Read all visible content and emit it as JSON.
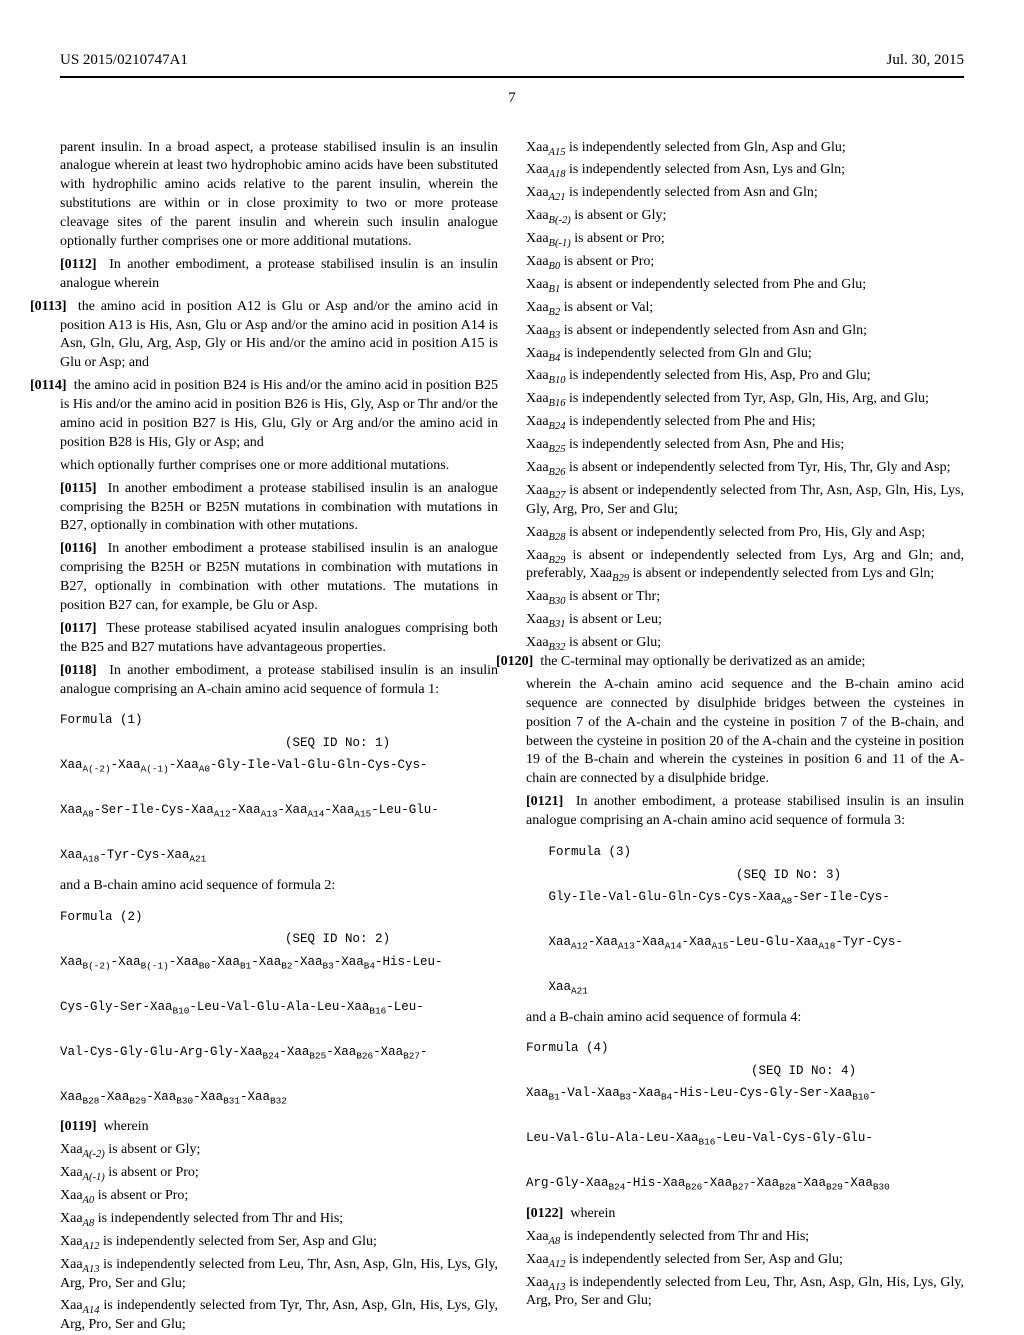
{
  "header": {
    "pub_number": "US 2015/0210747A1",
    "pub_date": "Jul. 30, 2015"
  },
  "page_number": "7",
  "left": {
    "intro": "parent insulin. In a broad aspect, a protease stabilised insulin is an insulin analogue wherein at least two hydrophobic amino acids have been substituted with hydrophilic amino acids relative to the parent insulin, wherein the substitutions are within or in close proximity to two or more protease cleavage sites of the parent insulin and wherein such insulin analogue optionally further comprises one or more additional mutations.",
    "p0112_num": "[0112]",
    "p0112": "In another embodiment, a protease stabilised insulin is an insulin analogue wherein",
    "p0113_num": "[0113]",
    "p0113": "the amino acid in position A12 is Glu or Asp and/or the amino acid in position A13 is His, Asn, Glu or Asp and/or the amino acid in position A14 is Asn, Gln, Glu, Arg, Asp, Gly or His and/or the amino acid in position A15 is Glu or Asp; and",
    "p0114_num": "[0114]",
    "p0114": "the amino acid in position B24 is His and/or the amino acid in position B25 is His and/or the amino acid in position B26 is His, Gly, Asp or Thr and/or the amino acid in position B27 is His, Glu, Gly or Arg and/or the amino acid in position B28 is His, Gly or Asp; and",
    "p0114_tail": "which optionally further comprises one or more additional mutations.",
    "p0115_num": "[0115]",
    "p0115": "In another embodiment a protease stabilised insulin is an analogue comprising the B25H or B25N mutations in combination with mutations in B27, optionally in combination with other mutations.",
    "p0116_num": "[0116]",
    "p0116": "In another embodiment a protease stabilised insulin is an analogue comprising the B25H or B25N mutations in combination with mutations in B27, optionally in combination with other mutations. The mutations in position B27 can, for example, be Glu or Asp.",
    "p0117_num": "[0117]",
    "p0117": "These protease stabilised acyated insulin analogues comprising both the B25 and B27 mutations have advantageous properties.",
    "p0118_num": "[0118]",
    "p0118": "In another embodiment, a protease stabilised insulin is an insulin analogue comprising an A-chain amino acid sequence of formula 1:",
    "formula1_label": "Formula (1)",
    "seq1_label": "(SEQ ID No: 1)",
    "bchain_intro": "and a B-chain amino acid sequence of formula 2:",
    "formula2_label": "Formula (2)",
    "seq2_label": "(SEQ ID No: 2)",
    "p0119_num": "[0119]",
    "p0119": "wherein"
  },
  "right": {
    "p0120_num": "[0120]",
    "p0120": "the C-terminal may optionally be derivatized as an amide;",
    "bridge": "wherein the A-chain amino acid sequence and the B-chain amino acid sequence are connected by disulphide bridges between the cysteines in position 7 of the A-chain and the cysteine in position 7 of the B-chain, and between the cysteine in position 20 of the A-chain and the cysteine in position 19 of the B-chain and wherein the cysteines in position 6 and 11 of the A-chain are connected by a disulphide bridge.",
    "p0121_num": "[0121]",
    "p0121": "In another embodiment, a protease stabilised insulin is an insulin analogue comprising an A-chain amino acid sequence of formula 3:",
    "formula3_label": "Formula (3)",
    "seq3_label": "(SEQ ID No: 3)",
    "bchain_intro4": "and a B-chain amino acid sequence of formula 4:",
    "formula4_label": "Formula (4)",
    "seq4_label": "(SEQ ID No: 4)",
    "p0122_num": "[0122]",
    "p0122": "wherein"
  },
  "xaa_left": [
    "Xaa_{A(-2)} is absent or Gly;",
    "Xaa_{A(-1)} is absent or Pro;",
    "Xaa_{A0} is absent or Pro;",
    "Xaa_{A8} is independently selected from Thr and His;",
    "Xaa_{A12} is independently selected from Ser, Asp and Glu;",
    "Xaa_{A13} is independently selected from Leu, Thr, Asn, Asp, Gln, His, Lys, Gly, Arg, Pro, Ser and Glu;"
  ],
  "xaa_right_top": [
    "Xaa_{A14} is independently selected from Tyr, Thr, Asn, Asp, Gln, His, Lys, Gly, Arg, Pro, Ser and Glu;",
    "Xaa_{A15} is independently selected from Gln, Asp and Glu;",
    "Xaa_{A18} is independently selected from Asn, Lys and Gln;",
    "Xaa_{A21} is independently selected from Asn and Gln;",
    "Xaa_{B(-2)} is absent or Gly;",
    "Xaa_{B(-1)} is absent or Pro;",
    "Xaa_{B0} is absent or Pro;",
    "Xaa_{B1} is absent or independently selected from Phe and Glu;",
    "Xaa_{B2} is absent or Val;",
    "Xaa_{B3} is absent or independently selected from Asn and Gln;",
    "Xaa_{B4} is independently selected from Gln and Glu;",
    "Xaa_{B10} is independently selected from His, Asp, Pro and Glu;",
    "Xaa_{B16} is independently selected from Tyr, Asp, Gln, His, Arg, and Glu;",
    "Xaa_{B24} is independently selected from Phe and His;",
    "Xaa_{B25} is independently selected from Asn, Phe and His;",
    "Xaa_{B26} is absent or independently selected from Tyr, His, Thr, Gly and Asp;",
    "Xaa_{B27} is absent or independently selected from Thr, Asn, Asp, Gln, His, Lys, Gly, Arg, Pro, Ser and Glu;",
    "Xaa_{B28} is absent or independently selected from Pro, His, Gly and Asp;",
    "Xaa_{B29} is absent or independently selected from Lys, Arg and Gln; and, preferably, Xaa_{B29} is absent or independently selected from Lys and Gln;",
    "Xaa_{B30} is absent or Thr;",
    "Xaa_{B31} is absent or Leu;",
    "Xaa_{B32} is absent or Glu;"
  ],
  "xaa_right_bottom": [
    "Xaa_{A8} is independently selected from Thr and His;",
    "Xaa_{A12} is independently selected from Ser, Asp and Glu;",
    "Xaa_{A13} is independently selected from Leu, Thr, Asn, Asp, Gln, His, Lys, Gly, Arg, Pro, Ser and Glu;"
  ]
}
